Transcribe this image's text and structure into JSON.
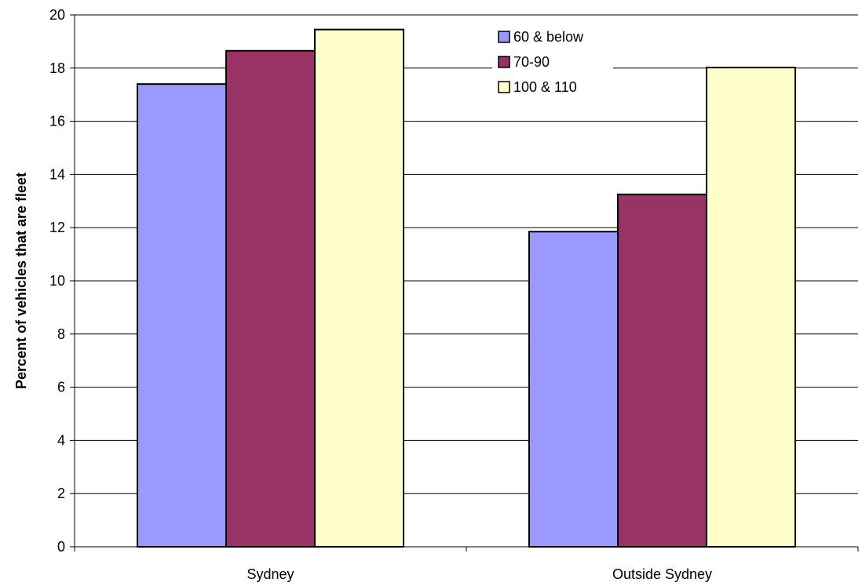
{
  "chart_data": {
    "type": "bar",
    "title": "",
    "xlabel": "",
    "ylabel": "Percent of vehicles that are fleet",
    "categories": [
      "Sydney",
      "Outside Sydney"
    ],
    "series": [
      {
        "name": "60 & below",
        "color": "#9999ff",
        "values": [
          17.4,
          11.85
        ]
      },
      {
        "name": "70-90",
        "color": "#993366",
        "values": [
          18.65,
          13.25
        ]
      },
      {
        "name": "100 & 110",
        "color": "#ffffcc",
        "values": [
          19.45,
          18.02
        ]
      }
    ],
    "ylim": [
      0,
      20
    ],
    "yticks": [
      0,
      2,
      4,
      6,
      8,
      10,
      12,
      14,
      16,
      18,
      20
    ],
    "grid": true,
    "legend_position": "top-right"
  }
}
